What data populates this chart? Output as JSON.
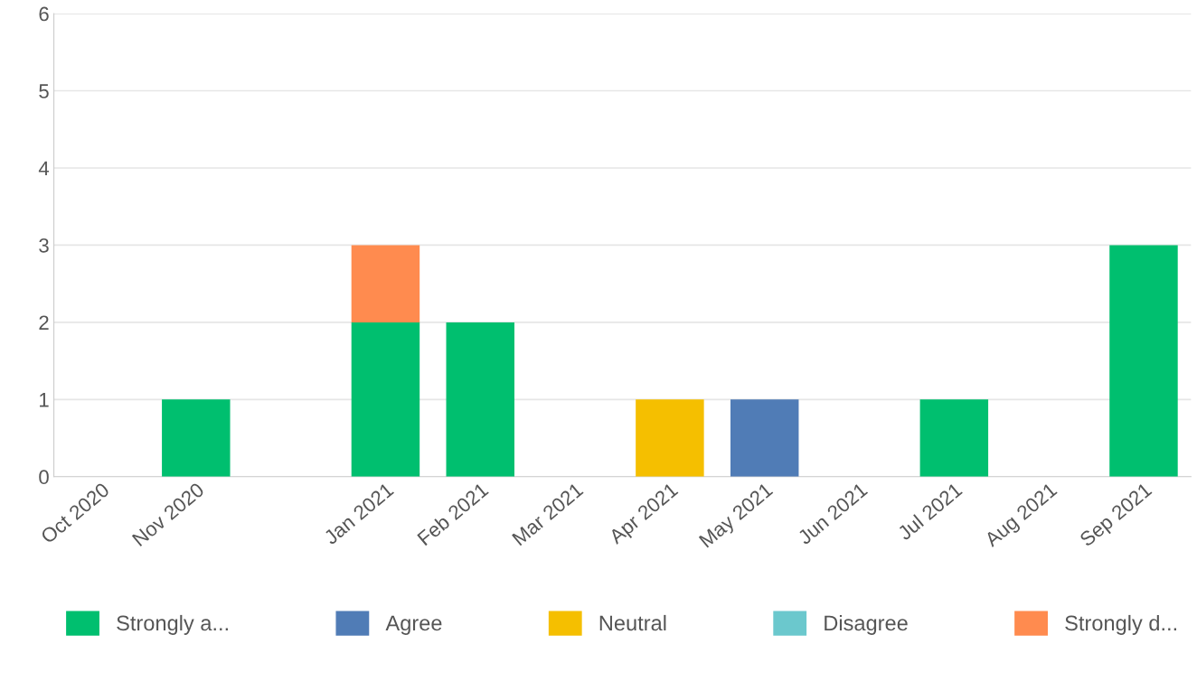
{
  "chart_data": {
    "type": "bar",
    "stacked": true,
    "categories": [
      "Oct 2020",
      "Nov 2020",
      null,
      "Jan 2021",
      "Feb 2021",
      "Mar 2021",
      "Apr 2021",
      "May 2021",
      "Jun 2021",
      "Jul 2021",
      "Aug 2021",
      "Sep 2021"
    ],
    "series": [
      {
        "name": "Strongly a...",
        "color": "#00bf6f",
        "values": [
          0,
          1,
          0,
          2,
          2,
          0,
          0,
          0,
          0,
          1,
          0,
          3
        ]
      },
      {
        "name": "Agree",
        "color": "#507cb6",
        "values": [
          0,
          0,
          0,
          0,
          0,
          0,
          0,
          1,
          0,
          0,
          0,
          0
        ]
      },
      {
        "name": "Neutral",
        "color": "#f5bf00",
        "values": [
          0,
          0,
          0,
          0,
          0,
          0,
          1,
          0,
          0,
          0,
          0,
          0
        ]
      },
      {
        "name": "Disagree",
        "color": "#6bc8cd",
        "values": [
          0,
          0,
          0,
          0,
          0,
          0,
          0,
          0,
          0,
          0,
          0,
          0
        ]
      },
      {
        "name": "Strongly d...",
        "color": "#ff8b4f",
        "values": [
          0,
          0,
          0,
          1,
          0,
          0,
          0,
          0,
          0,
          0,
          0,
          0
        ]
      }
    ],
    "ylim": [
      0,
      6
    ],
    "yticks": [
      0,
      1,
      2,
      3,
      4,
      5,
      6
    ],
    "grid": "y",
    "legend": "bottom"
  }
}
